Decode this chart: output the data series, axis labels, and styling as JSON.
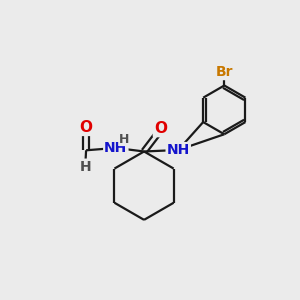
{
  "background_color": "#ebebeb",
  "bond_color": "#1a1a1a",
  "atom_colors": {
    "O": "#e00000",
    "N": "#1414cc",
    "Br": "#c87800",
    "C": "#1a1a1a",
    "H": "#505050"
  },
  "lw": 1.6,
  "fs": 11
}
